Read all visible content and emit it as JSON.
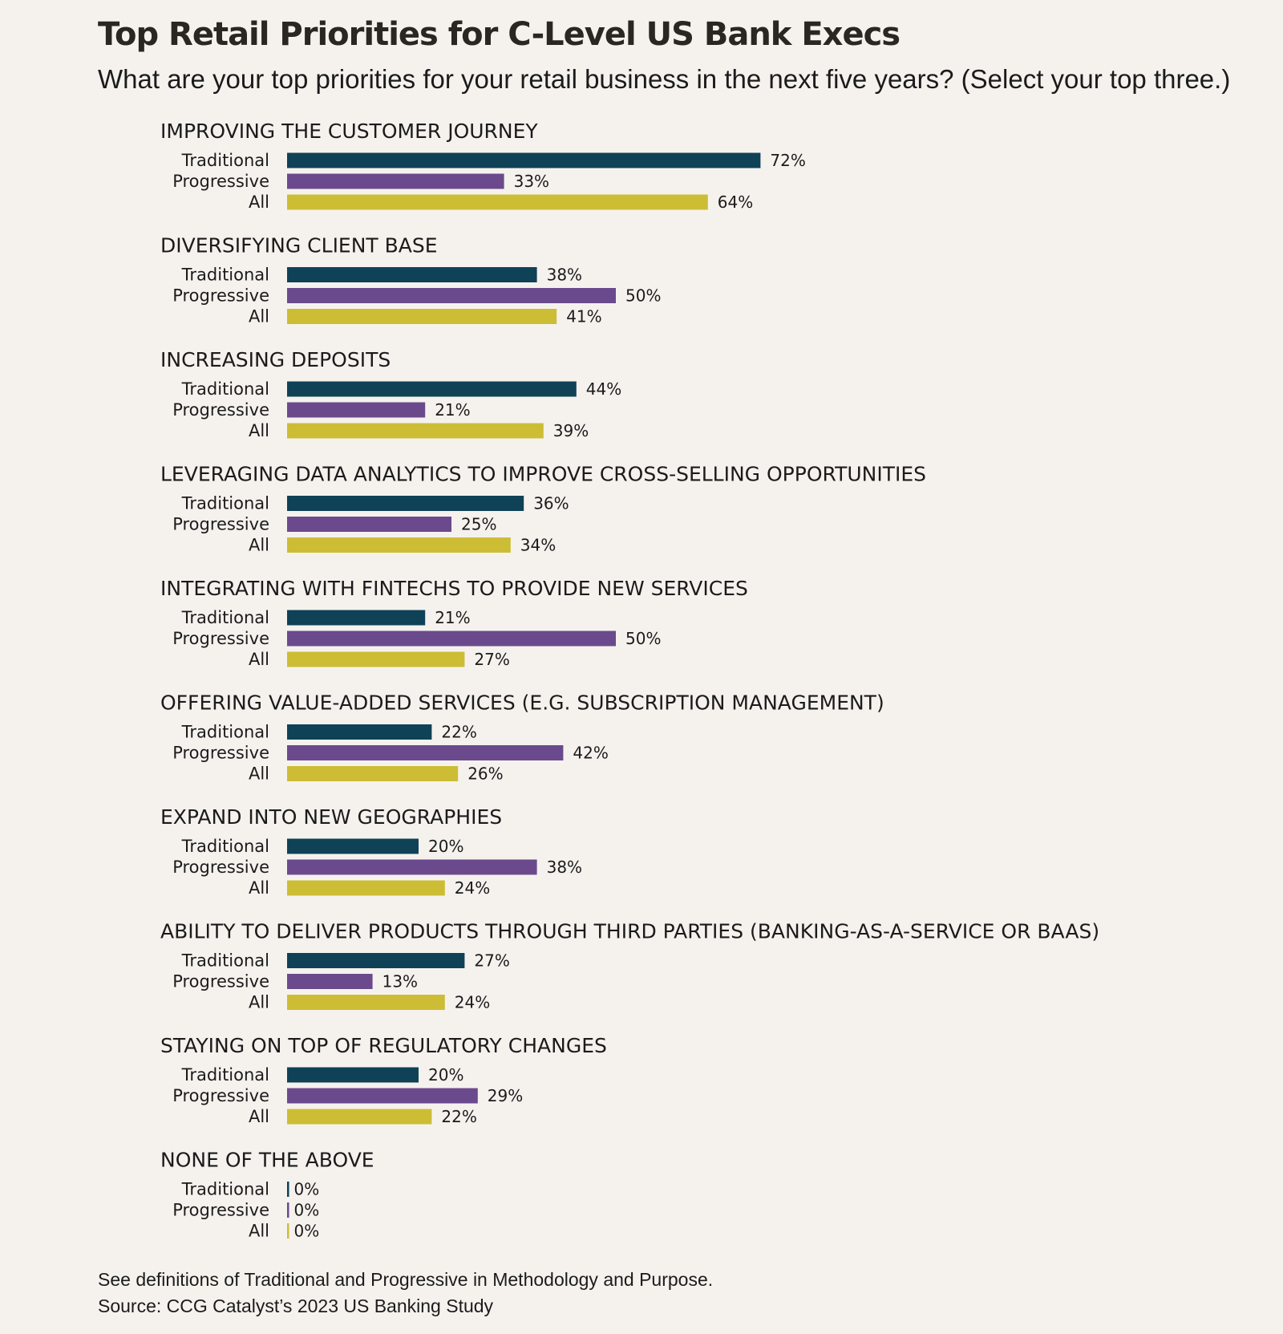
{
  "chart_data": {
    "type": "bar",
    "orientation": "horizontal",
    "title": "Top Retail Priorities for C-Level US Bank Execs",
    "subtitle": "What are your top priorities for your retail business in the next five years? (Select your top three.)",
    "xlim": [
      0,
      100
    ],
    "unit": "%",
    "series_names": [
      "Traditional",
      "Progressive",
      "All"
    ],
    "colors": {
      "Traditional": "#0f4157",
      "Progressive": "#6a4a8c",
      "All": "#cdbd35"
    },
    "categories": [
      "IMPROVING THE CUSTOMER JOURNEY",
      "DIVERSIFYING CLIENT BASE",
      "INCREASING DEPOSITS",
      "LEVERAGING DATA ANALYTICS TO IMPROVE CROSS-SELLING OPPORTUNITIES",
      "INTEGRATING WITH FINTECHS TO PROVIDE NEW SERVICES",
      "OFFERING VALUE-ADDED SERVICES (E.G. SUBSCRIPTION MANAGEMENT)",
      "EXPAND INTO NEW GEOGRAPHIES",
      "ABILITY TO DELIVER PRODUCTS THROUGH THIRD PARTIES (BANKING-AS-A-SERVICE OR BAAS)",
      "STAYING ON TOP OF REGULATORY CHANGES",
      "NONE OF THE ABOVE"
    ],
    "series": [
      {
        "name": "Traditional",
        "values": [
          72,
          38,
          44,
          36,
          21,
          22,
          20,
          27,
          20,
          0
        ]
      },
      {
        "name": "Progressive",
        "values": [
          33,
          50,
          21,
          25,
          50,
          42,
          38,
          13,
          29,
          0
        ]
      },
      {
        "name": "All",
        "values": [
          64,
          41,
          39,
          34,
          27,
          26,
          24,
          24,
          22,
          0
        ]
      }
    ]
  },
  "footnote": "See definitions of Traditional and Progressive in Methodology and Purpose.",
  "source": "Source: CCG Catalyst’s 2023 US Banking Study"
}
